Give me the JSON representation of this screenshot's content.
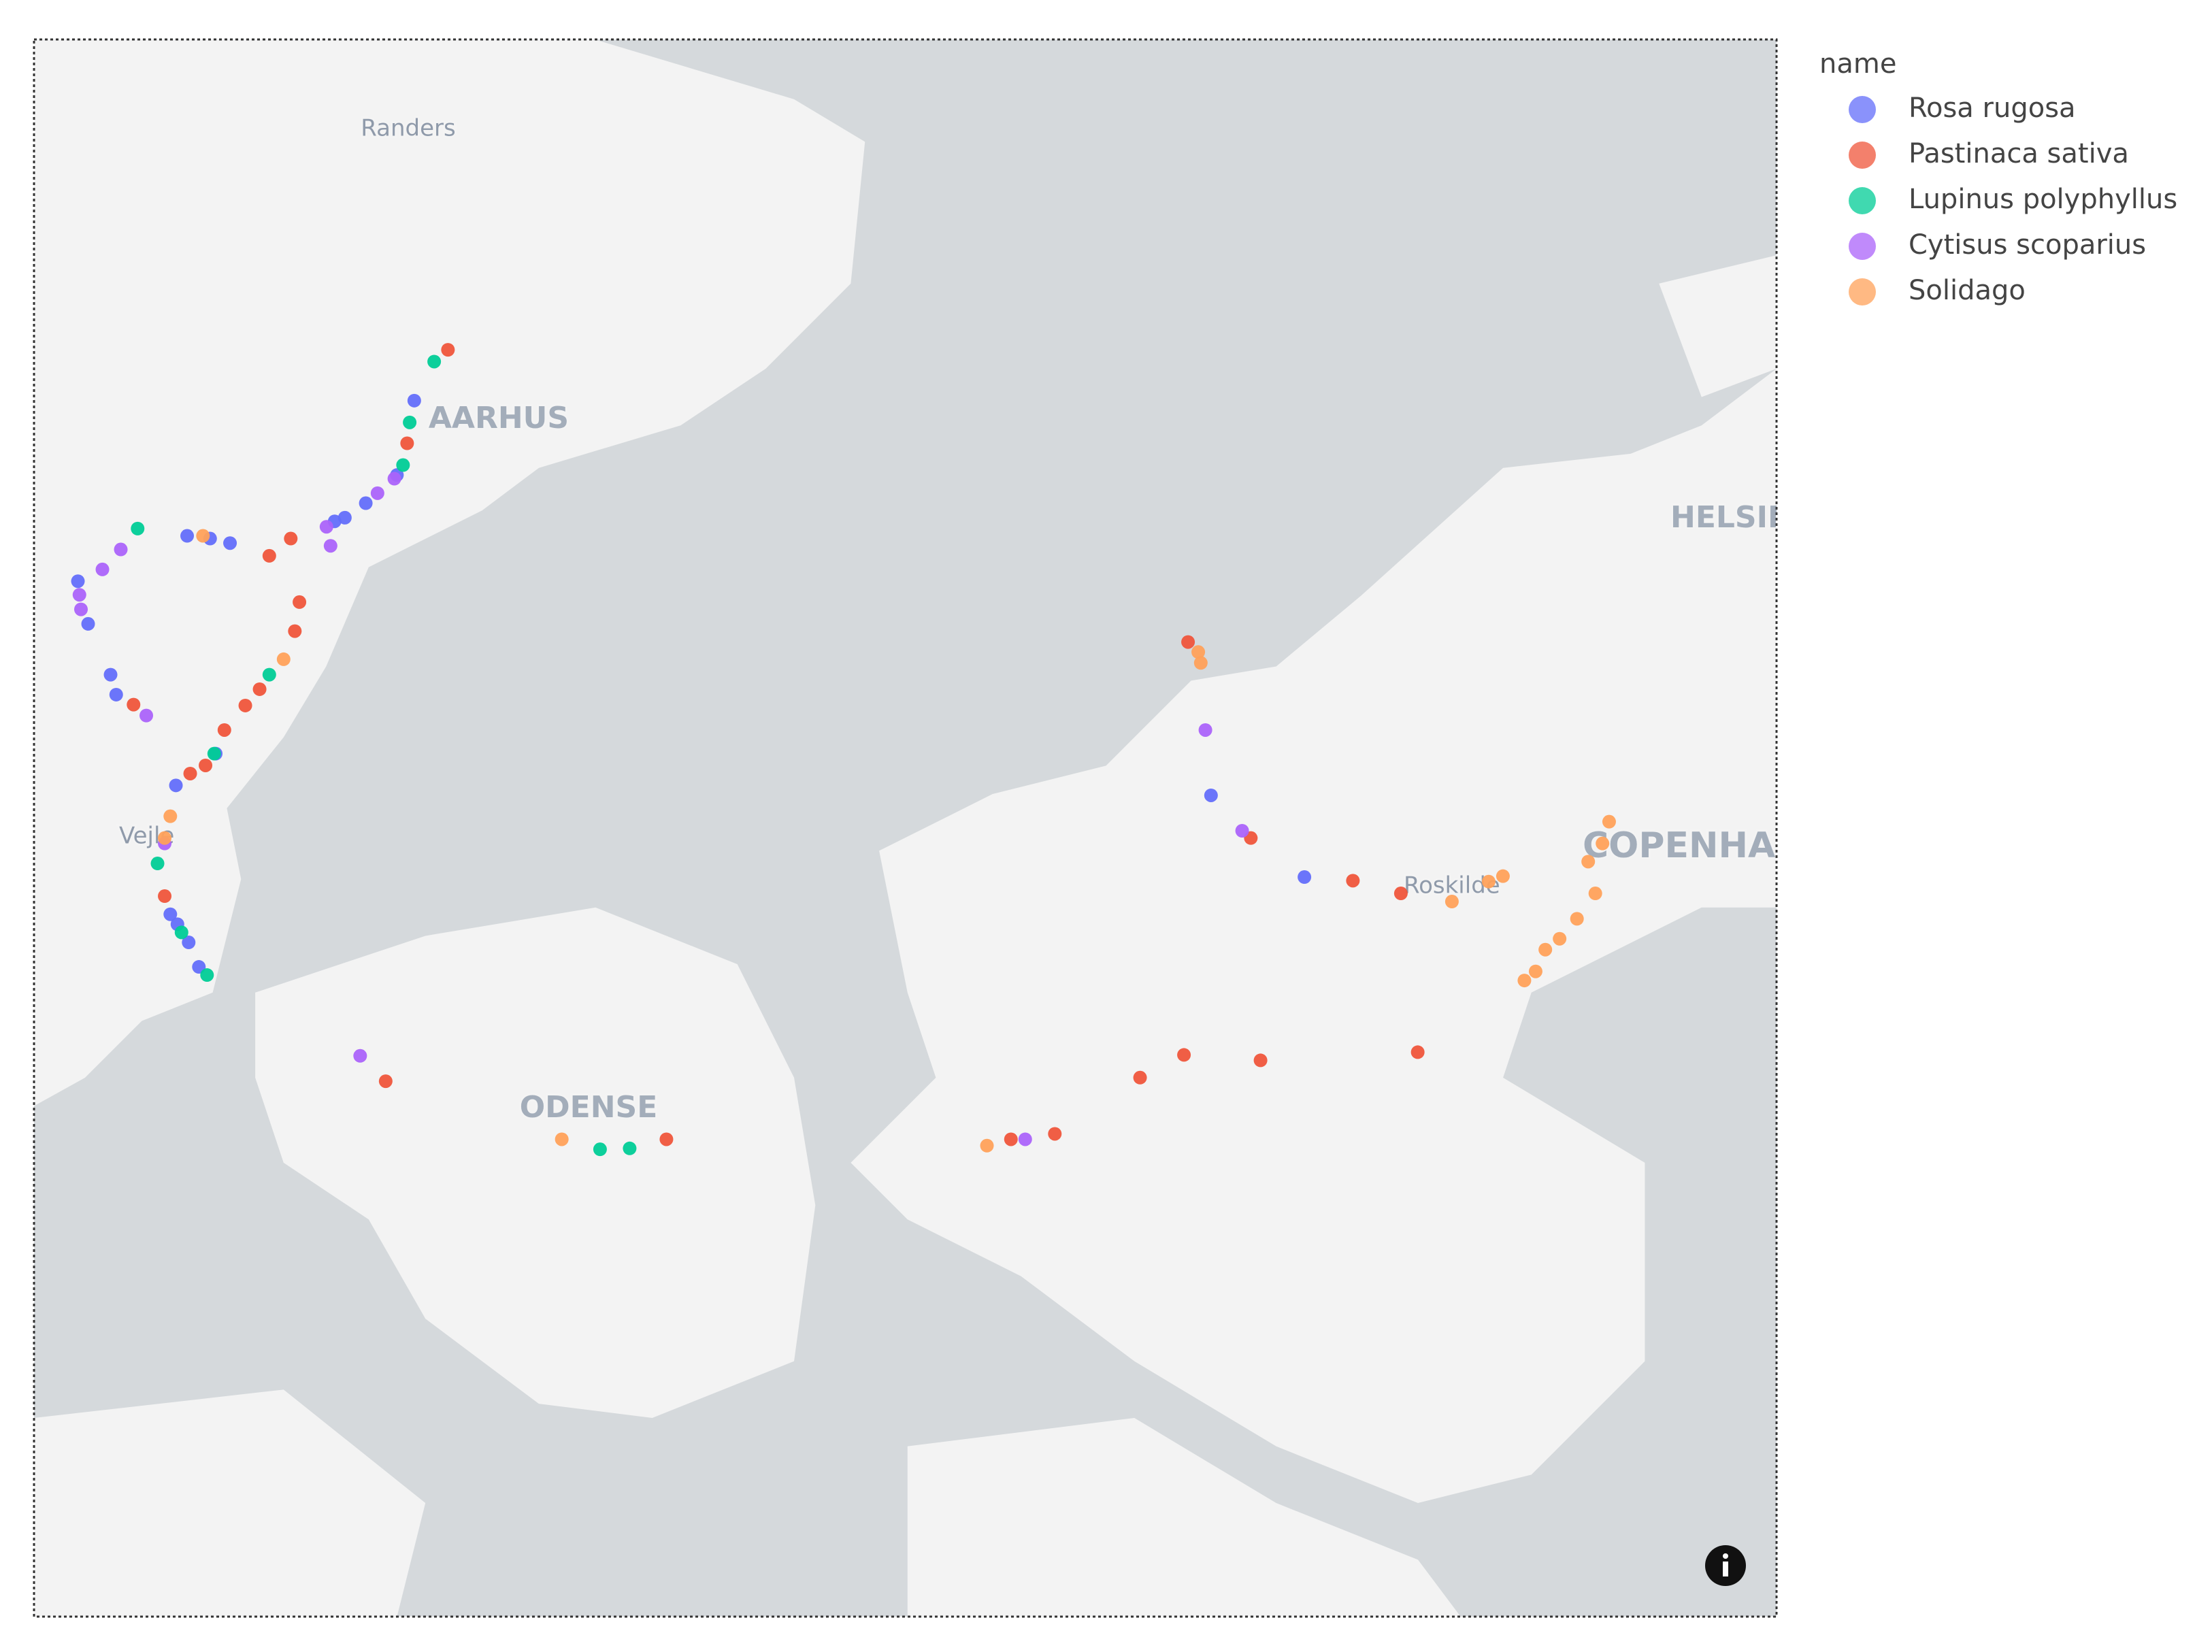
{
  "chart_data": {
    "type": "scatter",
    "legend_title": "name",
    "lonlim": [
      9.443,
      12.857
    ],
    "latlim": [
      54.837,
      56.575
    ],
    "place_labels": [
      "Randers",
      "AARHUS",
      "HELSIN",
      "Vejle",
      "ODENSE",
      "Roskilde",
      "COPENHA"
    ],
    "series": [
      {
        "name": "Rosa rugosa",
        "color": "#636efa",
        "lon": [
          10.188,
          10.154,
          10.093,
          10.052,
          10.032,
          9.743,
          9.788,
          9.827,
          9.593,
          9.604,
          9.721,
          9.799,
          9.71,
          9.724,
          9.746,
          9.766,
          11.932,
          11.749,
          9.529,
          9.549
        ],
        "lat": [
          56.177,
          56.095,
          56.064,
          56.048,
          56.044,
          56.028,
          56.025,
          56.02,
          55.875,
          55.853,
          55.753,
          55.788,
          55.611,
          55.6,
          55.58,
          55.553,
          55.652,
          55.742,
          55.978,
          55.931
        ]
      },
      {
        "name": "Pastinaca sativa",
        "color": "#EF553B",
        "lon": [
          10.254,
          10.174,
          9.946,
          9.904,
          9.963,
          9.954,
          9.885,
          9.857,
          9.816,
          9.779,
          9.749,
          9.638,
          9.699,
          11.704,
          11.827,
          12.027,
          12.121,
          11.61,
          11.696,
          11.846,
          12.154,
          11.443,
          11.357,
          10.132,
          10.682
        ],
        "lat": [
          56.233,
          56.13,
          56.025,
          56.006,
          55.955,
          55.923,
          55.859,
          55.841,
          55.814,
          55.775,
          55.766,
          55.842,
          55.631,
          55.911,
          55.695,
          55.648,
          55.634,
          55.431,
          55.456,
          55.45,
          55.459,
          55.369,
          55.363,
          55.427,
          55.363
        ]
      },
      {
        "name": "Lupinus polyphyllus",
        "color": "#00cc96",
        "lon": [
          10.227,
          10.179,
          10.166,
          9.646,
          9.904,
          9.796,
          9.685,
          9.732,
          9.782,
          10.552,
          10.61
        ],
        "lat": [
          56.22,
          56.153,
          56.106,
          56.036,
          55.875,
          55.788,
          55.667,
          55.591,
          55.544,
          55.352,
          55.353
        ]
      },
      {
        "name": "Cytisus scoparius",
        "color": "#ab63fa",
        "lon": [
          10.016,
          10.024,
          10.116,
          10.149,
          9.613,
          9.577,
          9.532,
          9.535,
          9.663,
          9.699,
          11.738,
          11.81,
          11.385,
          10.082
        ],
        "lat": [
          56.038,
          56.017,
          56.075,
          56.091,
          56.013,
          55.991,
          55.963,
          55.947,
          55.83,
          55.689,
          55.814,
          55.703,
          55.363,
          55.455
        ]
      },
      {
        "name": "Solidago",
        "color": "#FFA15A",
        "lon": [
          9.774,
          9.932,
          9.71,
          9.699,
          11.724,
          11.729,
          12.321,
          12.293,
          12.221,
          12.529,
          12.516,
          12.488,
          12.502,
          12.466,
          12.432,
          12.404,
          12.385,
          12.363,
          10.477,
          11.31
        ],
        "lat": [
          56.028,
          55.892,
          55.719,
          55.695,
          55.9,
          55.888,
          55.653,
          55.647,
          55.625,
          55.713,
          55.689,
          55.669,
          55.634,
          55.606,
          55.584,
          55.572,
          55.548,
          55.538,
          55.363,
          55.356
        ]
      }
    ]
  }
}
